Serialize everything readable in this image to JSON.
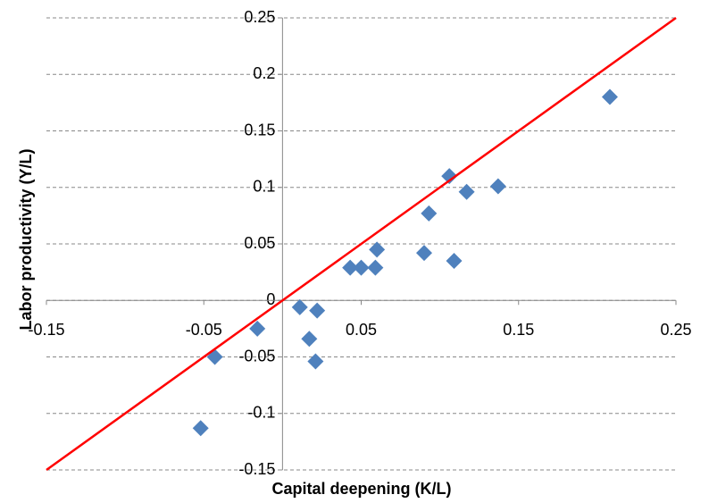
{
  "chart_data": {
    "type": "scatter",
    "x_label": "Capital deepening (K/L)",
    "y_label": "Labor productivity (Y/L)",
    "xlim": [
      -0.15,
      0.25
    ],
    "xticks": [
      -0.15,
      -0.05,
      0.05,
      0.15,
      0.25
    ],
    "ylim": [
      -0.15,
      0.25
    ],
    "yticks": [
      0.25,
      0.2,
      0.15,
      0.1,
      0.05,
      0,
      -0.05,
      -0.1,
      -0.15
    ],
    "grid": true,
    "series": [
      {
        "color": "#4f81bd",
        "x": [
          0.208,
          0.106,
          0.117,
          0.137,
          0.093,
          0.109,
          0.09,
          0.06,
          0.059,
          0.05,
          0.043,
          0.011,
          0.022,
          0.017,
          0.021,
          -0.016,
          -0.043,
          -0.052
        ],
        "values": [
          0.18,
          0.11,
          0.096,
          0.101,
          0.077,
          0.035,
          0.042,
          0.045,
          0.029,
          0.029,
          0.029,
          -0.006,
          -0.009,
          -0.034,
          -0.054,
          -0.025,
          -0.05,
          -0.113
        ]
      }
    ],
    "trend_line": {
      "color": "#ff0000",
      "x": [
        -0.15,
        0.25
      ],
      "values": [
        -0.15,
        0.25
      ]
    }
  }
}
